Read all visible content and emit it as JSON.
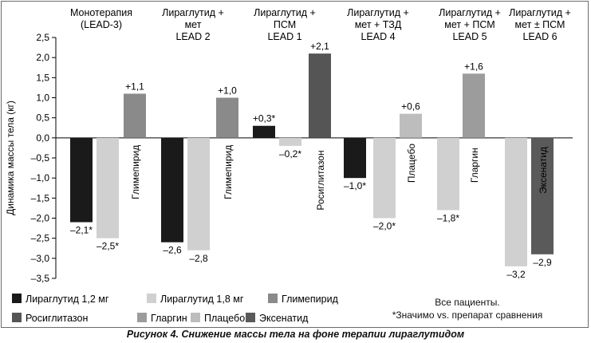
{
  "chart_data": {
    "type": "bar",
    "ylabel": "Динамика массы тела (кг)",
    "ylim": [
      -3.5,
      2.5
    ],
    "yticks": [
      "2,5",
      "2,0",
      "1,5",
      "1,0",
      "0,5",
      "0,0",
      "–0,5",
      "–1,0",
      "–1,5",
      "–2,0",
      "–2,5",
      "–3,0",
      "–3,5"
    ],
    "groups": [
      {
        "title": [
          "Монотерапия",
          "(LEAD-3)"
        ],
        "bars": [
          {
            "series": "lira12",
            "value": -2.1,
            "label": "–2,1*"
          },
          {
            "series": "lira18",
            "value": -2.5,
            "label": "–2,5*"
          },
          {
            "series": "glim",
            "value": 1.1,
            "label": "+1,1",
            "name": "Глимепирид"
          }
        ]
      },
      {
        "title": [
          "Лираглутид +",
          "мет",
          "LEAD 2"
        ],
        "bars": [
          {
            "series": "lira12",
            "value": -2.6,
            "label": "–2,6"
          },
          {
            "series": "lira18",
            "value": -2.8,
            "label": "–2,8"
          },
          {
            "series": "glim",
            "value": 1.0,
            "label": "+1,0",
            "name": "Глимепирид"
          }
        ]
      },
      {
        "title": [
          "Лираглутид +",
          "ПСМ",
          "LEAD 1"
        ],
        "bars": [
          {
            "series": "lira12",
            "value": 0.3,
            "label": "+0,3*"
          },
          {
            "series": "lira18",
            "value": -0.2,
            "label": "–0,2*"
          },
          {
            "series": "rosi",
            "value": 2.1,
            "label": "+2,1",
            "name": "Росиглитазон"
          }
        ]
      },
      {
        "title": [
          "Лираглутид +",
          "мет + ТЗД",
          "LEAD 4"
        ],
        "bars": [
          {
            "series": "lira12",
            "value": -1.0,
            "label": "–1,0*"
          },
          {
            "series": "lira18",
            "value": -2.0,
            "label": "–2,0*"
          },
          {
            "series": "plac",
            "value": 0.6,
            "label": "+0,6",
            "name": "Плацебо"
          }
        ]
      },
      {
        "title": [
          "Лираглутид +",
          "мет + ПСМ",
          "LEAD 5"
        ],
        "bars": [
          {
            "series": "lira18",
            "value": -1.8,
            "label": "–1,8*"
          },
          {
            "series": "glar",
            "value": 1.6,
            "label": "+1,6",
            "name": "Гларгин"
          }
        ]
      },
      {
        "title": [
          "Лираглутид +",
          "мет ± ПСМ",
          "LEAD 6"
        ],
        "bars": [
          {
            "series": "lira18",
            "value": -3.2,
            "label": "–3,2"
          },
          {
            "series": "exen",
            "value": -2.9,
            "label": "–2,9",
            "name": "Эксенатид"
          }
        ]
      }
    ],
    "series": [
      {
        "key": "lira12",
        "name": "Лираглутид 1,2 мг",
        "color": "#1a1a1a"
      },
      {
        "key": "lira18",
        "name": "Лираглутид 1,8 мг",
        "color": "#d0d0d0"
      },
      {
        "key": "glim",
        "name": "Глимепирид",
        "color": "#8a8a8a"
      },
      {
        "key": "rosi",
        "name": "Росиглитазон",
        "color": "#555555"
      },
      {
        "key": "glar",
        "name": "Гларгин",
        "color": "#9c9c9c"
      },
      {
        "key": "plac",
        "name": "Плацебо",
        "color": "#bdbdbd"
      },
      {
        "key": "exen",
        "name": "Эксенатид",
        "color": "#5a5a5a"
      }
    ]
  },
  "notes": {
    "all_patients": "Все пациенты.",
    "significance": "*Значимо vs. препарат сравнения"
  },
  "caption": "Рисунок 4. Снижение массы тела на фоне терапии лираглутидом"
}
